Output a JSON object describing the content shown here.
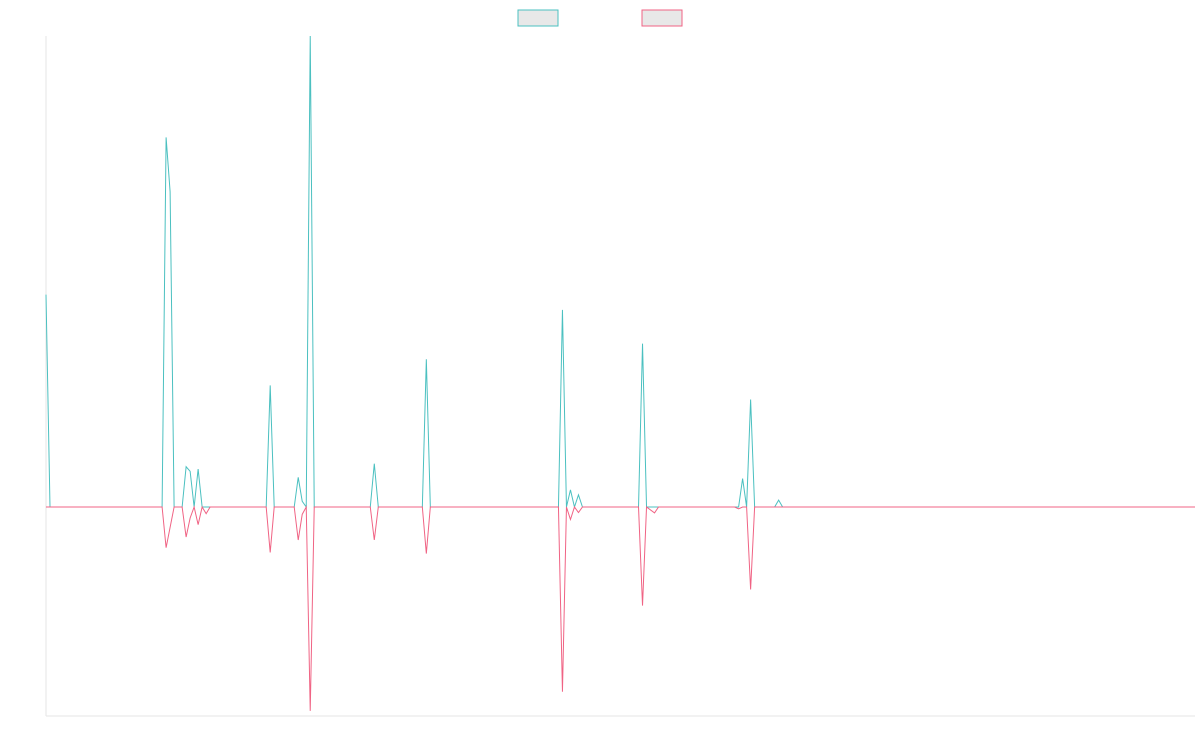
{
  "chart_data": {
    "type": "line",
    "title": "",
    "xlabel": "",
    "ylabel": "",
    "grid": false,
    "legend": "top-center",
    "ylim": [
      -100,
      100
    ],
    "x_count": 288,
    "series": [
      {
        "color": "#4bc0c0",
        "legend_fill": "#e8e8e8",
        "points": [
          [
            0,
            55.9
          ],
          [
            1,
            0
          ],
          [
            29,
            0
          ],
          [
            30,
            97.3
          ],
          [
            31,
            83.0
          ],
          [
            32,
            0
          ],
          [
            34,
            0
          ],
          [
            35,
            10.6
          ],
          [
            36,
            9.4
          ],
          [
            37,
            0
          ],
          [
            38,
            10.0
          ],
          [
            39,
            0
          ],
          [
            40,
            0
          ],
          [
            55,
            0
          ],
          [
            56,
            32.0
          ],
          [
            57,
            0
          ],
          [
            62,
            0
          ],
          [
            63,
            7.8
          ],
          [
            64,
            1.5
          ],
          [
            65,
            0
          ],
          [
            66,
            124.0
          ],
          [
            67,
            0
          ],
          [
            81,
            0
          ],
          [
            82,
            11.4
          ],
          [
            83,
            0
          ],
          [
            94,
            0
          ],
          [
            95,
            38.9
          ],
          [
            96,
            0
          ],
          [
            128,
            0
          ],
          [
            129,
            51.9
          ],
          [
            130,
            0
          ],
          [
            131,
            4.5
          ],
          [
            132,
            0
          ],
          [
            133,
            3.2
          ],
          [
            134,
            0
          ],
          [
            148,
            0
          ],
          [
            149,
            43.0
          ],
          [
            150,
            0
          ],
          [
            173,
            0
          ],
          [
            174,
            7.5
          ],
          [
            175,
            0
          ],
          [
            176,
            28.3
          ],
          [
            177,
            0
          ],
          [
            182,
            0
          ],
          [
            183,
            1.8
          ],
          [
            184,
            0
          ],
          [
            287,
            0
          ]
        ]
      },
      {
        "color": "#f06384",
        "legend_fill": "#e8e8e8",
        "points": [
          [
            0,
            0
          ],
          [
            29,
            0
          ],
          [
            30,
            -11.1
          ],
          [
            32,
            0
          ],
          [
            34,
            0
          ],
          [
            35,
            -8.2
          ],
          [
            36,
            -3.0
          ],
          [
            37,
            0
          ],
          [
            38,
            -4.8
          ],
          [
            39,
            0
          ],
          [
            40,
            -1.8
          ],
          [
            41,
            0
          ],
          [
            55,
            0
          ],
          [
            56,
            -12.4
          ],
          [
            57,
            0
          ],
          [
            62,
            0
          ],
          [
            63,
            -9.0
          ],
          [
            64,
            -2.0
          ],
          [
            65,
            0
          ],
          [
            66,
            -55.6
          ],
          [
            67,
            0
          ],
          [
            81,
            0
          ],
          [
            82,
            -9.0
          ],
          [
            83,
            0
          ],
          [
            94,
            0
          ],
          [
            95,
            -12.7
          ],
          [
            96,
            0
          ],
          [
            128,
            0
          ],
          [
            129,
            -50.4
          ],
          [
            130,
            0
          ],
          [
            131,
            -3.4
          ],
          [
            132,
            0
          ],
          [
            133,
            -1.5
          ],
          [
            134,
            0
          ],
          [
            148,
            0
          ],
          [
            149,
            -26.9
          ],
          [
            150,
            0
          ],
          [
            152,
            -1.6
          ],
          [
            153,
            0
          ],
          [
            172,
            0
          ],
          [
            173,
            -0.5
          ],
          [
            174,
            0
          ],
          [
            175,
            0
          ],
          [
            176,
            -22.5
          ],
          [
            177,
            0
          ],
          [
            287,
            0
          ]
        ]
      }
    ]
  }
}
